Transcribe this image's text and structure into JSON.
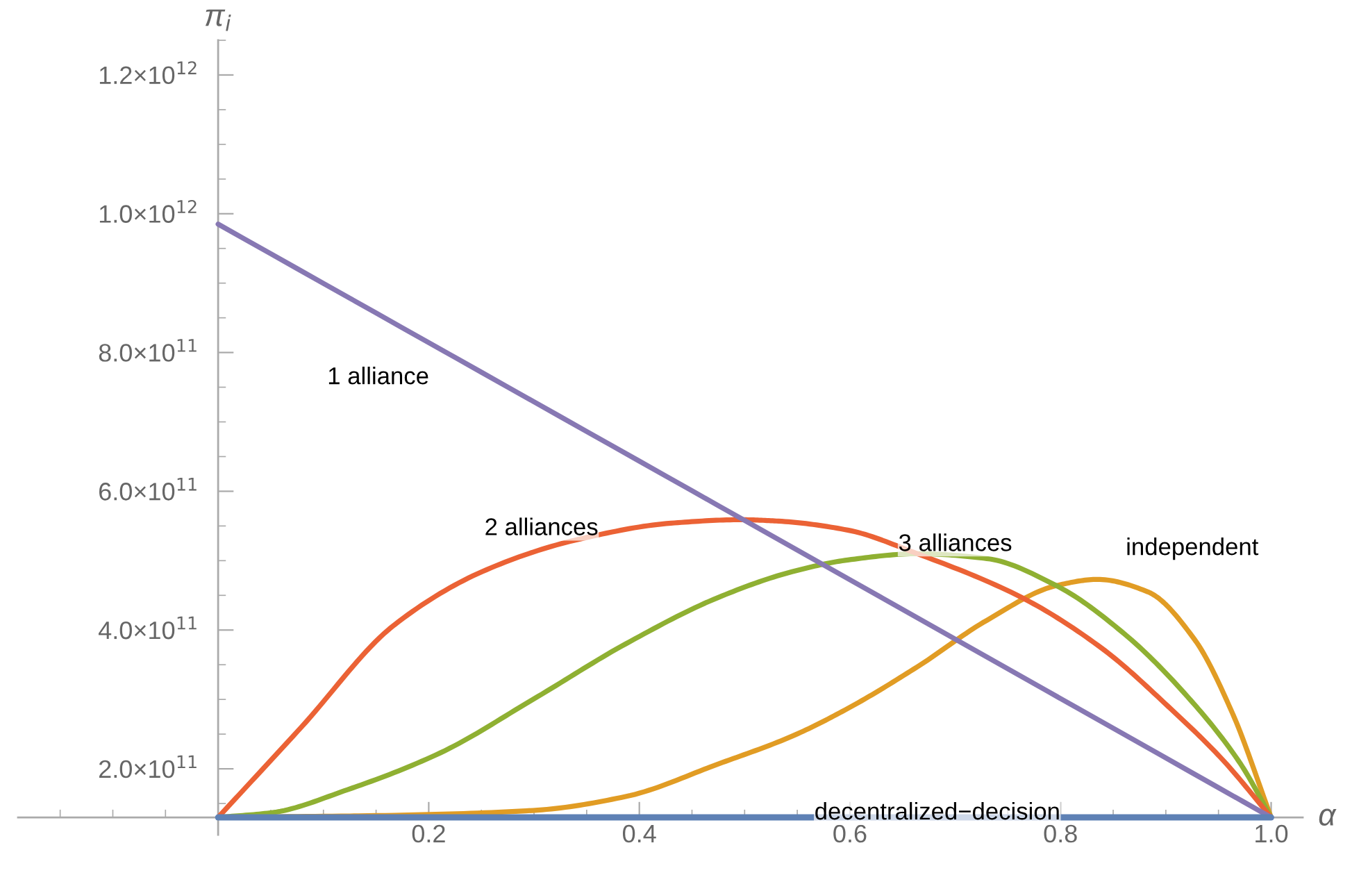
{
  "chart_data": {
    "type": "line",
    "xlabel": "α",
    "ylabel": "π$_{i}$",
    "xlim": [
      -0.19,
      1.03
    ],
    "ylim": [
      105000000000.0,
      1250000000000.0
    ],
    "xticks": [
      {
        "value": 0.2,
        "label": "0.2"
      },
      {
        "value": 0.4,
        "label": "0.4"
      },
      {
        "value": 0.6,
        "label": "0.6"
      },
      {
        "value": 0.8,
        "label": "0.8"
      },
      {
        "value": 1.0,
        "label": "1.0"
      }
    ],
    "yticks": [
      {
        "value": 200000000000.0,
        "label": "2.0×10$^{11}$"
      },
      {
        "value": 400000000000.0,
        "label": "4.0×10$^{11}$"
      },
      {
        "value": 600000000000.0,
        "label": "6.0×10$^{11}$"
      },
      {
        "value": 800000000000.0,
        "label": "8.0×10$^{11}$"
      },
      {
        "value": 1000000000000.0,
        "label": "1.0×10$^{12}$"
      },
      {
        "value": 1200000000000.0,
        "label": "1.2×10$^{12}$"
      }
    ],
    "grid": false,
    "legend": false,
    "marker": "none",
    "line_style": "solid",
    "series": [
      {
        "name": "decentralized−decision",
        "color": "#5e81b5",
        "x": [
          0,
          0.5,
          1.0
        ],
        "values": [
          130000000000.0,
          130000000000.0,
          130000000000.0
        ]
      },
      {
        "name": "independent",
        "color": "#e19c24",
        "x": [
          0,
          0.167,
          0.299,
          0.387,
          0.475,
          0.545,
          0.598,
          0.664,
          0.73,
          0.796,
          0.835,
          0.883,
          0.927,
          0.963,
          1.0
        ],
        "values": [
          130000000000.0,
          133000000000.0,
          140000000000.0,
          160000000000.0,
          207000000000.0,
          247000000000.0,
          287000000000.0,
          347000000000.0,
          414000000000.0,
          464000000000.0,
          473000000000.0,
          455000000000.0,
          387000000000.0,
          281000000000.0,
          130000000000.0
        ]
      },
      {
        "name": "3 alliances",
        "color": "#8fb032",
        "x": [
          0,
          0.052,
          0.123,
          0.211,
          0.299,
          0.387,
          0.475,
          0.545,
          0.598,
          0.664,
          0.73,
          0.796,
          0.861,
          0.927,
          0.971,
          1.0
        ],
        "values": [
          130000000000.0,
          137000000000.0,
          170000000000.0,
          223000000000.0,
          300000000000.0,
          380000000000.0,
          447000000000.0,
          484000000000.0,
          501000000000.0,
          510000000000.0,
          503000000000.0,
          464000000000.0,
          394000000000.0,
          293000000000.0,
          207000000000.0,
          130000000000.0
        ]
      },
      {
        "name": "2 alliances",
        "color": "#eb6235",
        "x": [
          0,
          0.079,
          0.167,
          0.255,
          0.343,
          0.43,
          0.496,
          0.532,
          0.598,
          0.664,
          0.763,
          0.839,
          0.905,
          0.954,
          1.0
        ],
        "values": [
          130000000000.0,
          260000000000.0,
          407000000000.0,
          487000000000.0,
          531000000000.0,
          554000000000.0,
          559000000000.0,
          557000000000.0,
          544000000000.0,
          510000000000.0,
          447000000000.0,
          374000000000.0,
          286000000000.0,
          213000000000.0,
          130000000000.0
        ]
      },
      {
        "name": "1 alliance",
        "color": "#8778b3",
        "x": [
          0,
          0.5,
          1.0
        ],
        "values": [
          985000000000.0,
          558000000000.0,
          130000000000.0
        ]
      }
    ]
  }
}
